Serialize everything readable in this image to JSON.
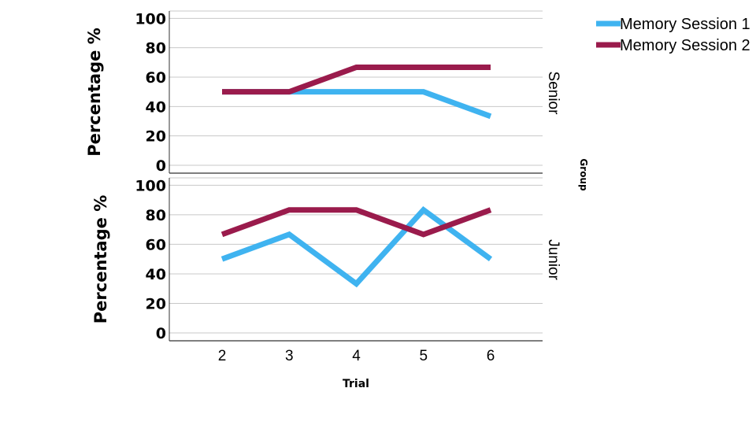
{
  "chart_data": {
    "type": "line",
    "xlabel": "Trial",
    "ylabel": "Percentage %",
    "panel_axis_label": "Group",
    "x": [
      2,
      3,
      4,
      5,
      6
    ],
    "ylim": [
      0,
      105
    ],
    "yticks": [
      0,
      20,
      40,
      60,
      80,
      100
    ],
    "grid": true,
    "legend": "top-right",
    "series_styles": [
      {
        "name": "Memory Session 1",
        "color": "#3fb3f0"
      },
      {
        "name": "Memory Session 2",
        "color": "#9a1b4c"
      }
    ],
    "panels": [
      {
        "label": "Senior",
        "series": [
          {
            "name": "Memory Session 1",
            "values": [
              50,
              50,
              50,
              50,
              33.3
            ]
          },
          {
            "name": "Memory Session 2",
            "values": [
              50,
              50,
              66.7,
              66.7,
              66.7
            ]
          }
        ]
      },
      {
        "label": "Junior",
        "series": [
          {
            "name": "Memory Session 1",
            "values": [
              50,
              66.7,
              33.3,
              83.3,
              50
            ]
          },
          {
            "name": "Memory Session 2",
            "values": [
              66.7,
              83.3,
              83.3,
              66.7,
              83.3
            ]
          }
        ]
      }
    ]
  }
}
